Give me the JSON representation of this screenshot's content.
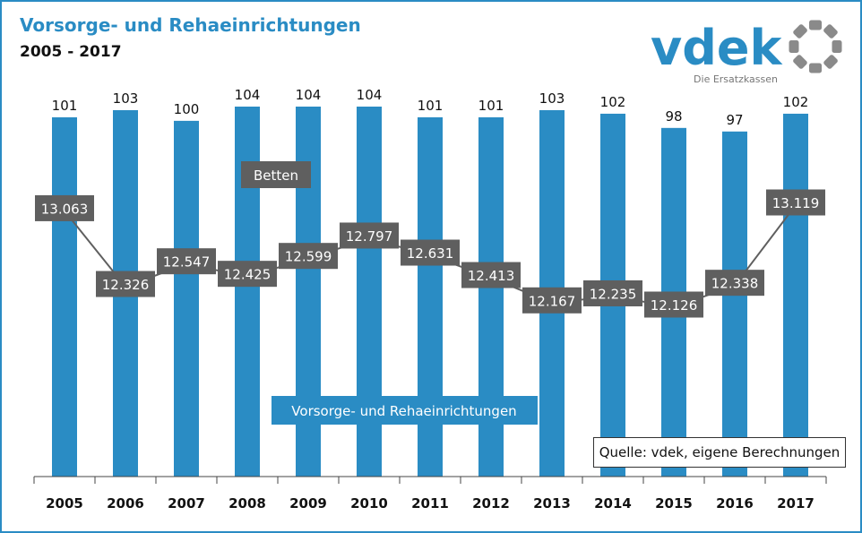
{
  "header": {
    "title": "Vorsorge- und Rehaeinrichtungen",
    "subtitle": "2005 - 2017"
  },
  "logo": {
    "wordmark": "vdek",
    "tagline": "Die Ersatzkassen",
    "brand_color": "#2a8cc4",
    "mark_color": "#8a8a8a"
  },
  "source": "Quelle: vdek, eigene Berechnungen",
  "chart_data": {
    "type": "bar",
    "categories": [
      "2005",
      "2006",
      "2007",
      "2008",
      "2009",
      "2010",
      "2011",
      "2012",
      "2013",
      "2014",
      "2015",
      "2016",
      "2017"
    ],
    "series": [
      {
        "name": "Vorsorge- und Rehaeinrichtungen",
        "type": "bar",
        "color": "#2a8cc4",
        "values": [
          101,
          103,
          100,
          104,
          104,
          104,
          101,
          101,
          103,
          102,
          98,
          97,
          102
        ],
        "labels": [
          "101",
          "103",
          "100",
          "104",
          "104",
          "104",
          "101",
          "101",
          "103",
          "102",
          "98",
          "97",
          "102"
        ]
      },
      {
        "name": "Betten",
        "type": "line",
        "color": "#5f5f5f",
        "values": [
          13063,
          12326,
          12547,
          12425,
          12599,
          12797,
          12631,
          12413,
          12167,
          12235,
          12126,
          12338,
          13119
        ],
        "labels": [
          "13.063",
          "12.326",
          "12.547",
          "12.425",
          "12.599",
          "12.797",
          "12.631",
          "12.413",
          "12.167",
          "12.235",
          "12.126",
          "12.338",
          "13.119"
        ]
      }
    ],
    "grid": false,
    "legend": "inline"
  }
}
